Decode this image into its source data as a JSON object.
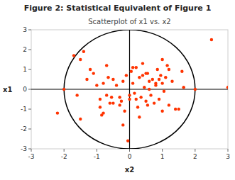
{
  "chart_data": {
    "type": "scatter",
    "title": "Figure 2: Statistical Equivalent of Figure 1",
    "subtitle": "Scatterplot of x1 vs. x2",
    "xlabel": "x2",
    "ylabel": "x1",
    "x": [
      -2.0,
      -1.7,
      -1.5,
      -1.4,
      -1.2,
      -1.1,
      -0.9,
      -0.8,
      -0.7,
      -0.6,
      -0.5,
      -0.4,
      -0.3,
      -0.2,
      -0.1,
      -1.6,
      -1.3,
      -0.85,
      -0.65,
      -0.55,
      -0.25,
      -0.15,
      0.0,
      0.05,
      0.1,
      0.15,
      0.2,
      0.25,
      0.3,
      0.35,
      0.4,
      0.45,
      0.5,
      0.55,
      0.6,
      0.65,
      0.7,
      0.75,
      0.8,
      0.85,
      0.9,
      0.95,
      1.0,
      1.05,
      1.1,
      1.15,
      1.2,
      1.3,
      1.4,
      1.5,
      1.6,
      1.65,
      2.5,
      -2.2,
      -0.05,
      0.55,
      -0.9,
      -0.3,
      0.1,
      0.4,
      0.8,
      1.0,
      -1.5,
      -0.7,
      -0.2,
      0.3,
      0.6,
      0.9,
      1.2,
      -1.0,
      -0.5,
      0.0,
      0.5,
      1.0,
      -0.8,
      0.2,
      3.0,
      2.0
    ],
    "values": [
      0.0,
      1.7,
      1.5,
      1.9,
      1.0,
      0.8,
      -0.5,
      0.3,
      1.2,
      -0.7,
      0.5,
      0.2,
      -0.8,
      0.4,
      0.7,
      -0.3,
      0.5,
      -1.3,
      0.6,
      -0.4,
      -0.6,
      -1.1,
      -0.5,
      0.9,
      0.3,
      -0.2,
      1.1,
      -0.9,
      0.6,
      -0.4,
      1.3,
      0.1,
      -0.6,
      0.8,
      0.4,
      -0.3,
      0.5,
      -0.7,
      0.2,
      1.0,
      -0.5,
      0.7,
      0.3,
      -0.1,
      0.6,
      1.2,
      -0.8,
      0.4,
      -1.0,
      -1.0,
      0.9,
      0.1,
      2.5,
      -1.2,
      -2.6,
      -0.8,
      -0.9,
      -0.4,
      1.1,
      0.7,
      0.3,
      -1.1,
      -1.5,
      -0.3,
      -1.8,
      -1.4,
      0.0,
      0.5,
      1.0,
      0.2,
      -0.7,
      -0.3,
      0.8,
      1.5,
      -1.2,
      -0.5,
      0.1,
      0.0
    ],
    "color": "#ff3300",
    "xlim": [
      -3,
      3
    ],
    "ylim": [
      -3,
      3
    ],
    "xticks": [
      -3,
      -2,
      -1,
      0,
      1,
      2,
      3
    ],
    "yticks": [
      -3,
      -2,
      -1,
      0,
      1,
      2,
      3
    ],
    "ellipse": {
      "cx": 0,
      "cy": 0,
      "rx": 2.0,
      "ry": 3.0
    },
    "hline": 0,
    "vline": 0,
    "grid": false
  }
}
